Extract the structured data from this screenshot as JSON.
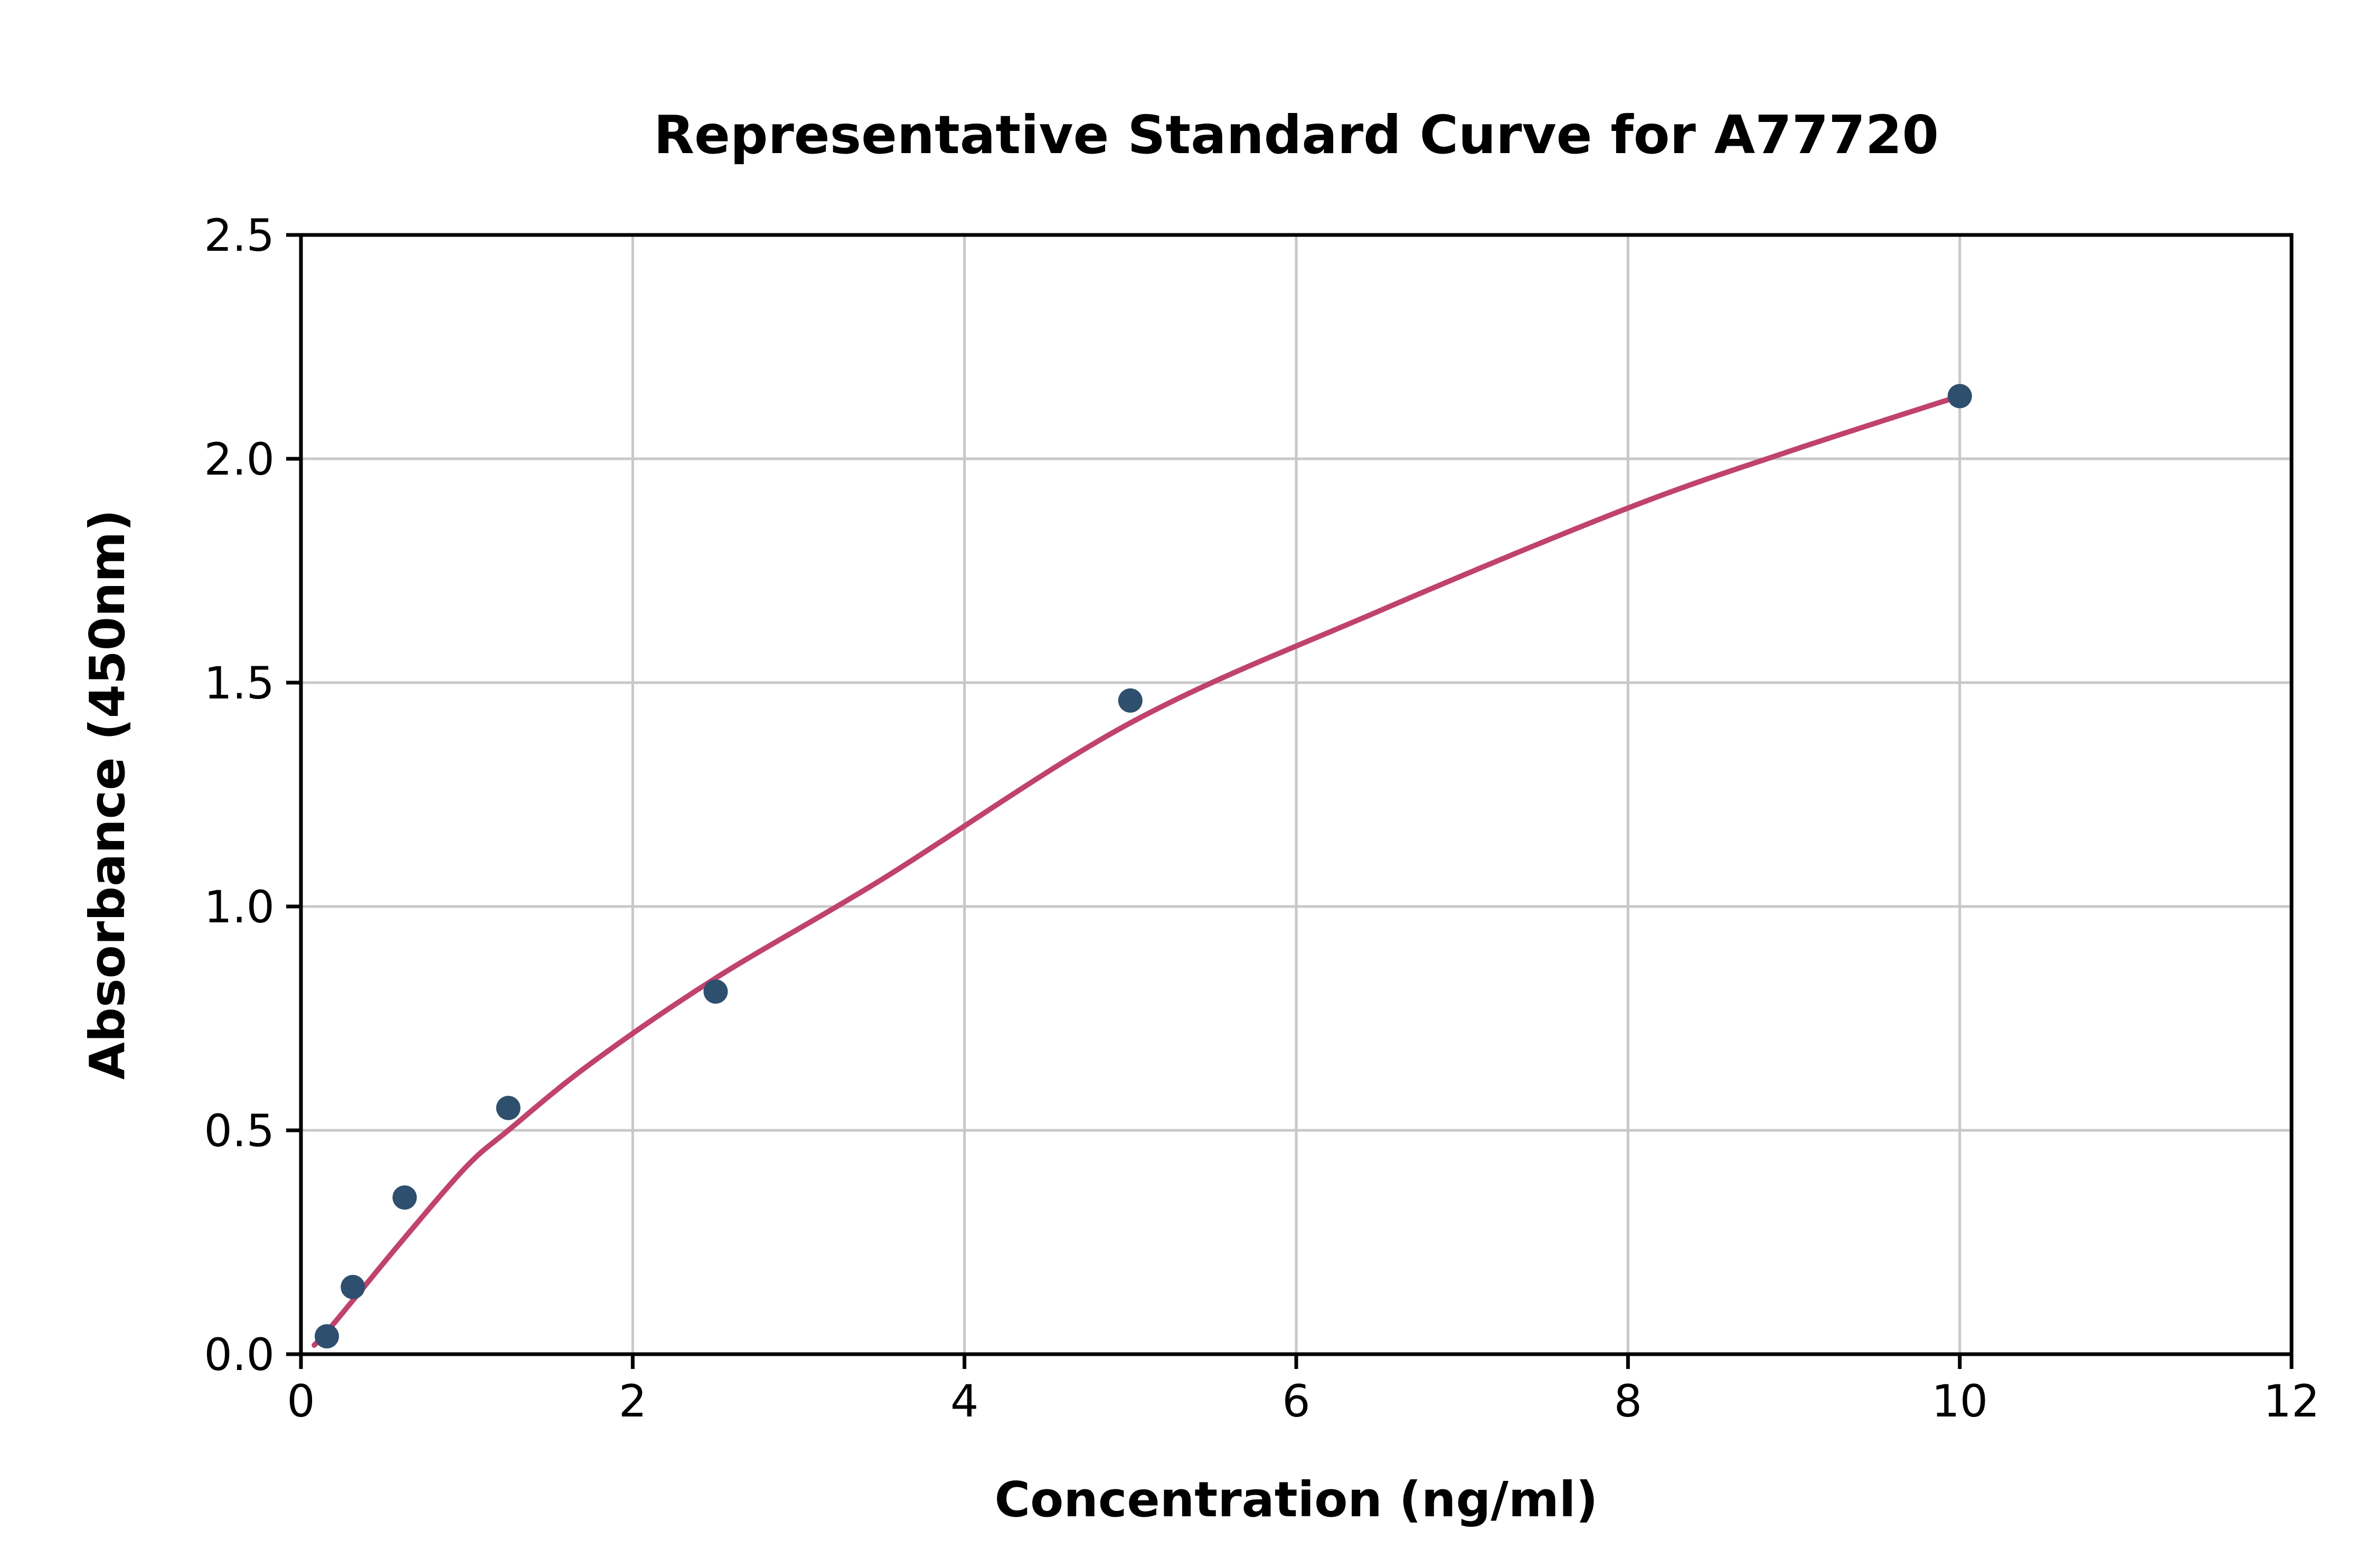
{
  "page": {
    "background": "#ffffff"
  },
  "chart_data": {
    "type": "scatter",
    "title": "Representative Standard Curve for A77720",
    "xlabel": "Concentration (ng/ml)",
    "ylabel": "Absorbance (450nm)",
    "xlim": [
      0,
      12
    ],
    "ylim": [
      0,
      2.5
    ],
    "grid": true,
    "grid_color": "#c8c8c8",
    "frame_color": "#000000",
    "legend": "none",
    "xticks": [
      {
        "v": 0,
        "label": "0"
      },
      {
        "v": 2,
        "label": "2"
      },
      {
        "v": 4,
        "label": "4"
      },
      {
        "v": 6,
        "label": "6"
      },
      {
        "v": 8,
        "label": "8"
      },
      {
        "v": 10,
        "label": "10"
      },
      {
        "v": 12,
        "label": "12"
      }
    ],
    "yticks": [
      {
        "v": 0.0,
        "label": "0.0"
      },
      {
        "v": 0.5,
        "label": "0.5"
      },
      {
        "v": 1.0,
        "label": "1.0"
      },
      {
        "v": 1.5,
        "label": "1.5"
      },
      {
        "v": 2.0,
        "label": "2.0"
      },
      {
        "v": 2.5,
        "label": "2.5"
      }
    ],
    "series": [
      {
        "name": "standard-points",
        "type": "scatter",
        "color": "#2e4f6e",
        "points": [
          [
            0.156,
            0.04
          ],
          [
            0.313,
            0.15
          ],
          [
            0.625,
            0.35
          ],
          [
            1.25,
            0.55
          ],
          [
            2.5,
            0.81
          ],
          [
            5.0,
            1.46
          ],
          [
            10.0,
            2.14
          ]
        ]
      },
      {
        "name": "fit-curve",
        "type": "line",
        "color": "#c0426e",
        "points": [
          [
            0.08,
            0.02
          ],
          [
            0.156,
            0.05
          ],
          [
            0.313,
            0.12
          ],
          [
            0.625,
            0.26
          ],
          [
            1.0,
            0.42
          ],
          [
            1.25,
            0.5
          ],
          [
            1.75,
            0.65
          ],
          [
            2.5,
            0.84
          ],
          [
            3.5,
            1.06
          ],
          [
            5.0,
            1.41
          ],
          [
            6.5,
            1.66
          ],
          [
            8.0,
            1.89
          ],
          [
            9.0,
            2.02
          ],
          [
            10.0,
            2.14
          ]
        ]
      }
    ]
  }
}
